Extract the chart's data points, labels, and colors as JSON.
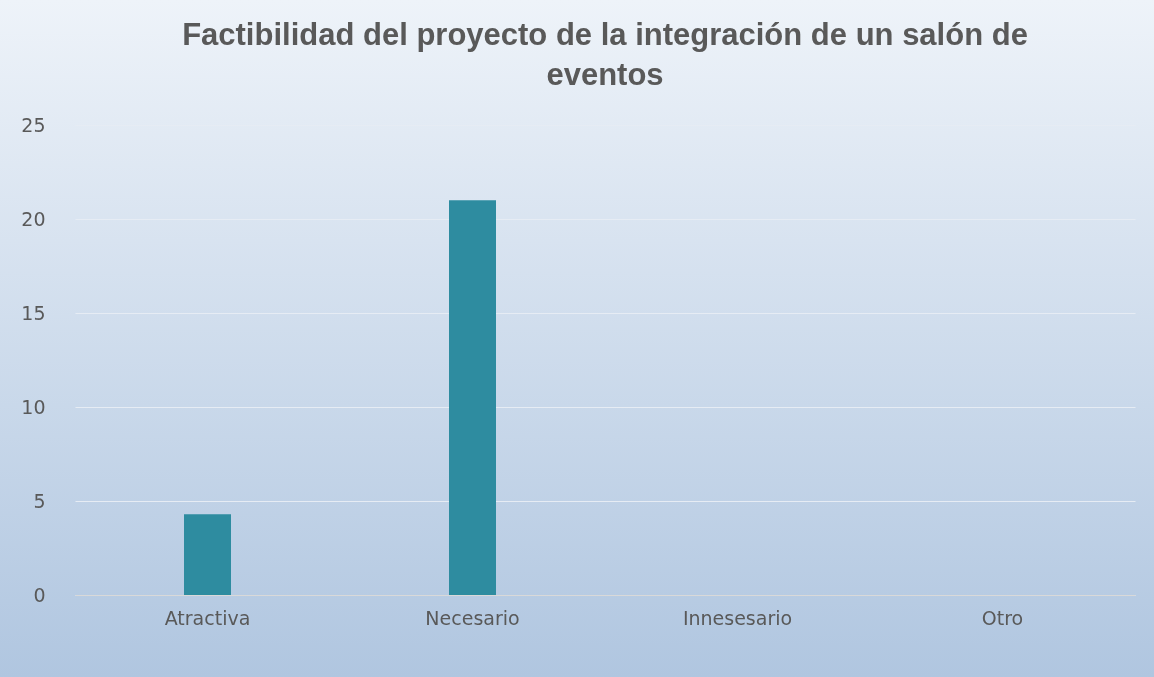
{
  "chart_data": {
    "type": "bar",
    "title": "Factibilidad del proyecto de la integración de un salón de eventos",
    "categories": [
      "Atractiva",
      "Necesario",
      "Innesesario",
      "Otro"
    ],
    "values": [
      4.3,
      21,
      null,
      null
    ],
    "color": "#2e8ca0",
    "ylim": [
      0,
      25
    ],
    "yticks": [
      0,
      5,
      10,
      15,
      20,
      25
    ],
    "grid": "y"
  }
}
